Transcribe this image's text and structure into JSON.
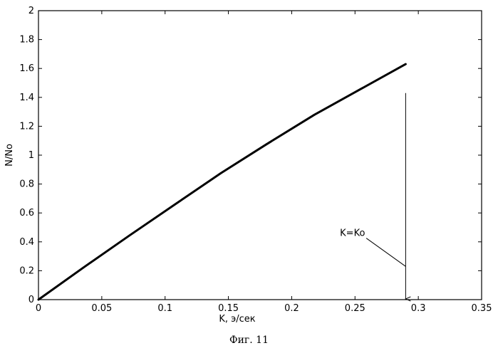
{
  "caption": "Фиг. 11",
  "chart_data": {
    "type": "line",
    "xlabel": "K, э/сек",
    "ylabel": "N/No",
    "xlim": [
      0,
      0.35
    ],
    "ylim": [
      0,
      2
    ],
    "x_ticks": [
      0,
      0.05,
      0.1,
      0.15,
      0.2,
      0.25,
      0.3,
      0.35
    ],
    "x_tick_labels": [
      "0",
      "0.05",
      "0.1",
      "0.15",
      "0.2",
      "0.25",
      "0.3",
      "0.35"
    ],
    "y_ticks": [
      0,
      0.2,
      0.4,
      0.6,
      0.8,
      1,
      1.2,
      1.4,
      1.6,
      1.8,
      2
    ],
    "y_tick_labels": [
      "0",
      "0.2",
      "0.4",
      "0.6",
      "0.8",
      "1",
      "1.2",
      "1.4",
      "1.6",
      "1.8",
      "2"
    ],
    "grid": false,
    "series": [
      {
        "x": [
          0,
          0.036,
          0.072,
          0.108,
          0.144,
          0.18,
          0.218,
          0.254,
          0.29
        ],
        "y": [
          0,
          0.225,
          0.445,
          0.66,
          0.875,
          1.075,
          1.28,
          1.455,
          1.63
        ]
      }
    ],
    "marker_line": {
      "x": 0.29,
      "y_from": 1.43,
      "y_to": 0
    },
    "annotation": {
      "text": "K=Ko",
      "x": 0.255,
      "y": 0.44,
      "point_x": 0.29,
      "point_y": 0.23
    }
  }
}
